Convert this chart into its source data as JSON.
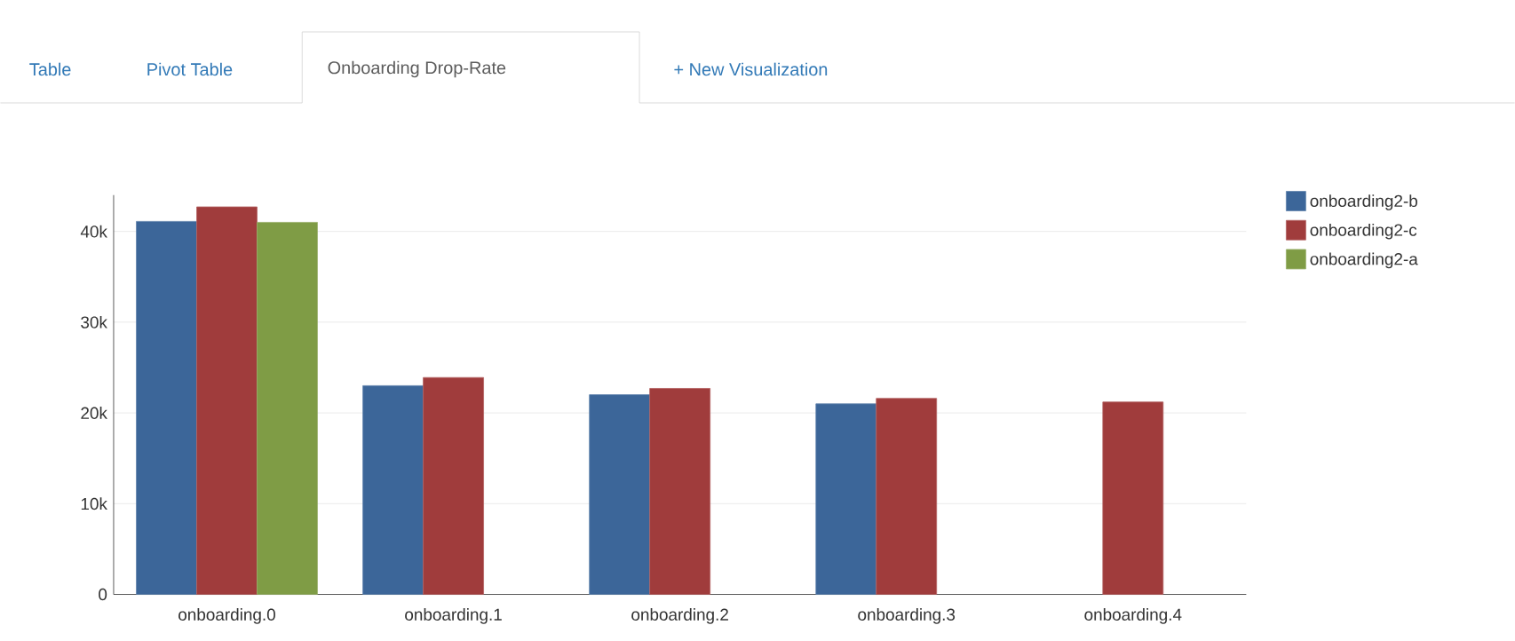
{
  "chart_data": {
    "type": "bar",
    "annotations": [
      "Table",
      "Pivot Table",
      "Onboarding Drop-Rate",
      "+ New Visualization"
    ],
    "categories": [
      "onboarding.0",
      "onboarding.1",
      "onboarding.2",
      "onboarding.3",
      "onboarding.4"
    ],
    "series": [
      {
        "name": "onboarding2-b",
        "color": "#3c6699",
        "values": [
          41100,
          23000,
          22000,
          21000,
          null
        ]
      },
      {
        "name": "onboarding2-c",
        "color": "#a03c3c",
        "values": [
          42700,
          23900,
          22700,
          21600,
          21200
        ]
      },
      {
        "name": "onboarding2-a",
        "color": "#7f9c45",
        "values": [
          41000,
          null,
          null,
          null,
          null
        ]
      }
    ],
    "ylim": [
      0,
      44000
    ],
    "yticks": [
      0,
      {
        "value": 10000,
        "label": "10k"
      },
      {
        "value": 20000,
        "label": "20k"
      },
      {
        "value": 30000,
        "label": "30k"
      },
      {
        "value": 40000,
        "label": "40k"
      }
    ],
    "grid": "y",
    "legend": "top right"
  }
}
